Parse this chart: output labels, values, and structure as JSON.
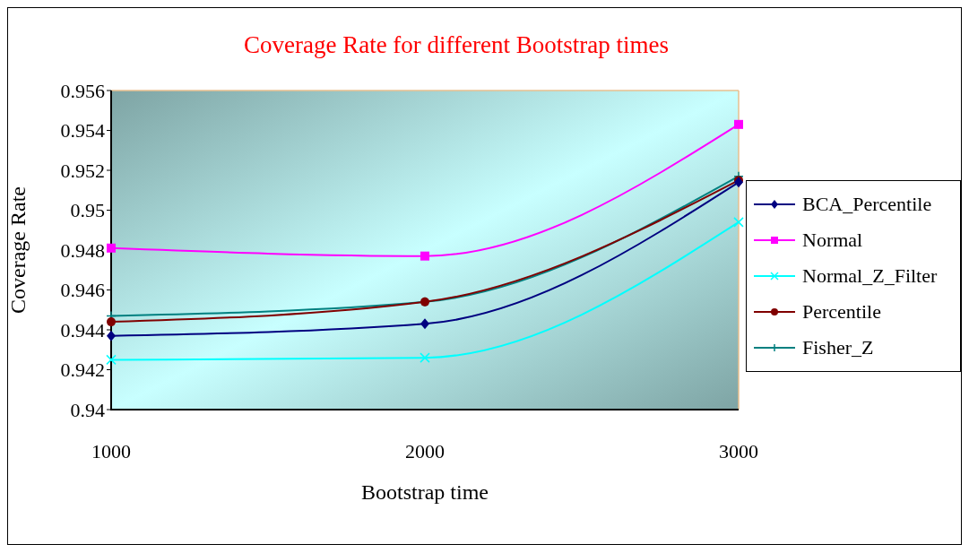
{
  "chart_data": {
    "type": "line",
    "title": "Coverage Rate for different Bootstrap times",
    "xlabel": "Bootstrap time",
    "ylabel": "Coverage Rate",
    "x": [
      1000,
      2000,
      3000
    ],
    "series": [
      {
        "name": "BCA_Percentile",
        "color": "#000080",
        "marker": "diamond",
        "values": [
          0.9437,
          0.9443,
          0.9514
        ]
      },
      {
        "name": "Normal",
        "color": "#ff00ff",
        "marker": "square",
        "values": [
          0.9481,
          0.9477,
          0.9543
        ]
      },
      {
        "name": "Normal_Z_Filter",
        "color": "#00ffff",
        "marker": "cross",
        "values": [
          0.9425,
          0.9426,
          0.9494
        ]
      },
      {
        "name": "Percentile",
        "color": "#800000",
        "marker": "circle",
        "values": [
          0.9444,
          0.9454,
          0.9515
        ]
      },
      {
        "name": "Fisher_Z",
        "color": "#008080",
        "marker": "plus",
        "values": [
          0.9447,
          0.9454,
          0.9517
        ]
      }
    ],
    "xlim": [
      1000,
      3000
    ],
    "xticks": [
      1000,
      2000,
      3000
    ],
    "ylim": [
      0.94,
      0.956
    ],
    "yticks": [
      0.94,
      0.942,
      0.944,
      0.946,
      0.948,
      0.95,
      0.952,
      0.954,
      0.956
    ],
    "grid": false,
    "legend": "right",
    "line_style": "solid"
  }
}
